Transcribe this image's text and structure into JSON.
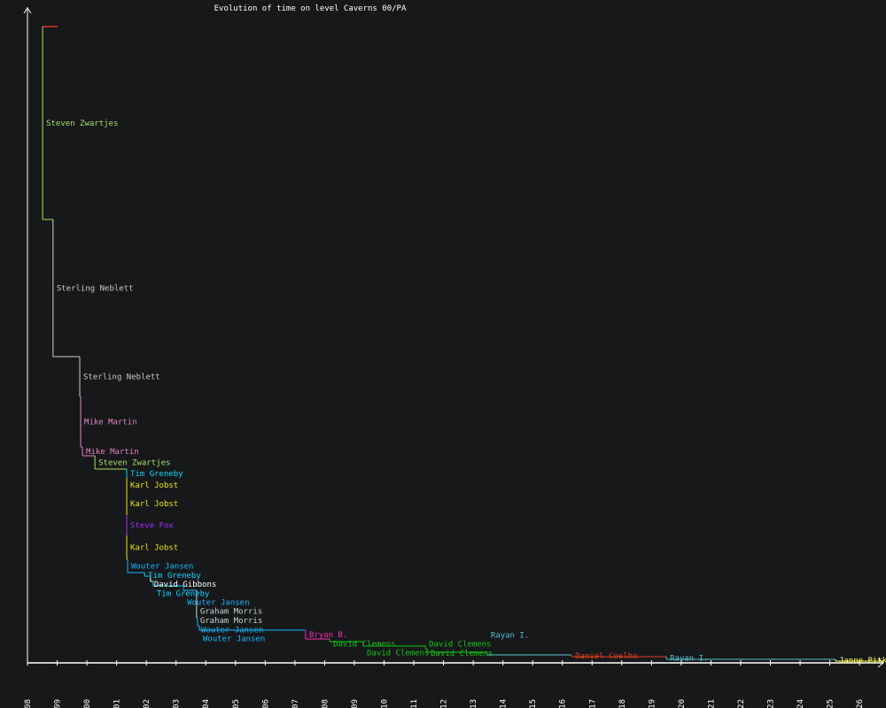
{
  "chart_data": {
    "type": "line",
    "subtype": "step",
    "title": "Evolution of time on level Caverns 00/PA",
    "xlabel": "",
    "ylabel": "",
    "xlim": [
      1998,
      2028.9
    ],
    "ylim": [
      0,
      739
    ],
    "grid": false,
    "start": {
      "year": 1998.51,
      "value": 719,
      "color": "#e0301e"
    },
    "x_ticks": [
      "1998",
      "1999",
      "2000",
      "2001",
      "2002",
      "2003",
      "2004",
      "2005",
      "2006",
      "2007",
      "2008",
      "2009",
      "2010",
      "2011",
      "2012",
      "2013",
      "2014",
      "2015",
      "2016",
      "2017",
      "2018",
      "2019",
      "2020",
      "2021",
      "2022",
      "2023",
      "2024",
      "2025",
      "2026"
    ],
    "records": [
      {
        "name": "Steven Zwartjes",
        "year": 1998.51,
        "value": 501,
        "color": "#a6e060"
      },
      {
        "name": "Sterling Neblett",
        "year": 1998.86,
        "value": 346,
        "color": "#cccccc"
      },
      {
        "name": "Sterling Neblett",
        "year": 1999.76,
        "value": 301,
        "color": "#cccccc"
      },
      {
        "name": "Mike Martin",
        "year": 1999.79,
        "value": 244,
        "color": "#e884c8"
      },
      {
        "name": "Mike Martin",
        "year": 1999.85,
        "value": 234,
        "color": "#e884c8"
      },
      {
        "name": "Steven Zwartjes",
        "year": 2000.27,
        "value": 219,
        "color": "#a6e060"
      },
      {
        "name": "Tim Greneby",
        "year": 2001.34,
        "value": 209,
        "color": "#00d8ff"
      },
      {
        "name": "Karl Jobst",
        "year": 2001.34,
        "value": 193,
        "color": "#e8e800"
      },
      {
        "name": "Karl Jobst",
        "year": 2001.34,
        "value": 167,
        "color": "#e8e800"
      },
      {
        "name": "Steve Fox",
        "year": 2001.34,
        "value": 144,
        "color": "#a030ff"
      },
      {
        "name": "Karl Jobst",
        "year": 2001.34,
        "value": 117,
        "color": "#e8e800"
      },
      {
        "name": "Wouter Jansen",
        "year": 2001.37,
        "value": 102,
        "color": "#10b8f8"
      },
      {
        "name": "Tim Greneby",
        "year": 2001.94,
        "value": 98,
        "color": "#00d8ff"
      },
      {
        "name": "David Gibbons",
        "year": 2002.14,
        "value": 92,
        "color": "#ffffff"
      },
      {
        "name": "Tim Greneby",
        "year": 2002.23,
        "value": 87,
        "color": "#00d8ff"
      },
      {
        "name": "Wouter Jansen",
        "year": 2003.25,
        "value": 82,
        "color": "#10b8f8"
      },
      {
        "name": "Graham Morris",
        "year": 2003.69,
        "value": 77,
        "color": "#c8d4d4"
      },
      {
        "name": "Graham Morris",
        "year": 2003.69,
        "value": 51,
        "color": "#c8d4d4"
      },
      {
        "name": "Wouter Jansen",
        "year": 2003.72,
        "value": 42,
        "color": "#10b8f8"
      },
      {
        "name": "Wouter Jansen",
        "year": 2003.78,
        "value": 37,
        "color": "#10b8f8"
      },
      {
        "name": "Bryan B.",
        "year": 2007.36,
        "value": 27,
        "color": "#f030b0"
      },
      {
        "name": "David Clemens",
        "year": 2008.17,
        "value": 24,
        "color": "#10c810"
      },
      {
        "name": "David Clemens",
        "year": 2009.3,
        "value": 19,
        "color": "#10c810"
      },
      {
        "name": "David Clemens",
        "year": 2011.39,
        "value": 16,
        "color": "#10c810"
      },
      {
        "name": "David Clemens",
        "year": 2011.45,
        "value": 12,
        "color": "#10c810"
      },
      {
        "name": "Rayan I.",
        "year": 2013.47,
        "value": 9,
        "color": "#58c0d0"
      },
      {
        "name": "Daniel Coelho",
        "year": 2016.31,
        "value": 7,
        "color": "#e04020"
      },
      {
        "name": "Rayan I.",
        "year": 2019.5,
        "value": 4,
        "color": "#58c0d0"
      },
      {
        "name": "Janne Pitkä",
        "year": 2025.19,
        "value": 2,
        "color": "#ffff50"
      }
    ]
  },
  "colors": {
    "background": "#17181a",
    "axis": "#ffffff",
    "title": "#ffffff"
  }
}
